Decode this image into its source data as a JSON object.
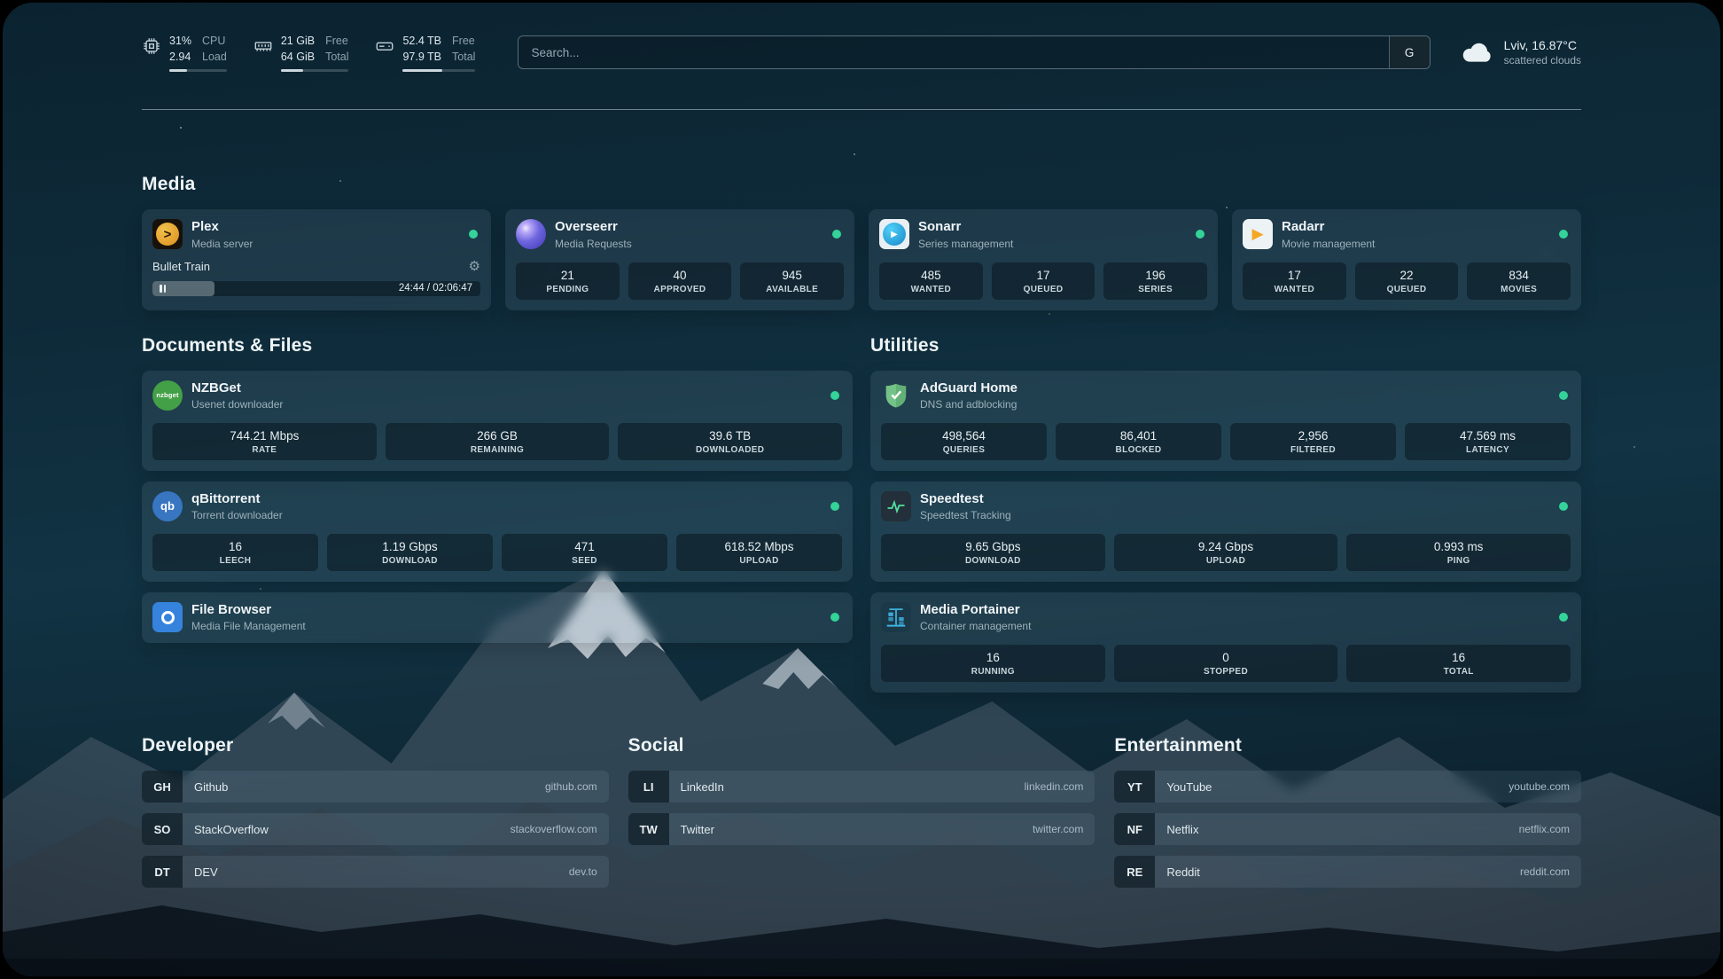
{
  "topbar": {
    "cpu": {
      "value": "31%",
      "load": "2.94",
      "label_top": "CPU",
      "label_bottom": "Load",
      "bar_percent": 31
    },
    "memory": {
      "value": "21 GiB",
      "total": "64 GiB",
      "label_top": "Free",
      "label_bottom": "Total",
      "bar_percent": 33
    },
    "disk": {
      "value": "52.4 TB",
      "total": "97.9 TB",
      "label_top": "Free",
      "label_bottom": "Total",
      "bar_percent": 54
    },
    "search": {
      "placeholder": "Search...",
      "provider_label": "G"
    },
    "weather": {
      "location": "Lviv, 16.87°C",
      "condition": "scattered clouds"
    }
  },
  "media": {
    "title": "Media",
    "plex": {
      "name": "Plex",
      "subtitle": "Media server",
      "now_playing": "Bullet Train",
      "time": "24:44 / 02:06:47",
      "progress_percent": 19
    },
    "overseerr": {
      "name": "Overseerr",
      "subtitle": "Media Requests",
      "stats": [
        {
          "value": "21",
          "label": "PENDING"
        },
        {
          "value": "40",
          "label": "APPROVED"
        },
        {
          "value": "945",
          "label": "AVAILABLE"
        }
      ]
    },
    "sonarr": {
      "name": "Sonarr",
      "subtitle": "Series management",
      "stats": [
        {
          "value": "485",
          "label": "WANTED"
        },
        {
          "value": "17",
          "label": "QUEUED"
        },
        {
          "value": "196",
          "label": "SERIES"
        }
      ]
    },
    "radarr": {
      "name": "Radarr",
      "subtitle": "Movie management",
      "stats": [
        {
          "value": "17",
          "label": "WANTED"
        },
        {
          "value": "22",
          "label": "QUEUED"
        },
        {
          "value": "834",
          "label": "MOVIES"
        }
      ]
    }
  },
  "documents": {
    "title": "Documents & Files",
    "nzbget": {
      "name": "NZBGet",
      "subtitle": "Usenet downloader",
      "icon_text": "nzbget",
      "stats": [
        {
          "value": "744.21 Mbps",
          "label": "RATE"
        },
        {
          "value": "266 GB",
          "label": "REMAINING"
        },
        {
          "value": "39.6 TB",
          "label": "DOWNLOADED"
        }
      ]
    },
    "qbittorrent": {
      "name": "qBittorrent",
      "subtitle": "Torrent downloader",
      "icon_text": "qb",
      "stats": [
        {
          "value": "16",
          "label": "LEECH"
        },
        {
          "value": "1.19 Gbps",
          "label": "DOWNLOAD"
        },
        {
          "value": "471",
          "label": "SEED"
        },
        {
          "value": "618.52 Mbps",
          "label": "UPLOAD"
        }
      ]
    },
    "filebrowser": {
      "name": "File Browser",
      "subtitle": "Media File Management"
    }
  },
  "utilities": {
    "title": "Utilities",
    "adguard": {
      "name": "AdGuard Home",
      "subtitle": "DNS and adblocking",
      "stats": [
        {
          "value": "498,564",
          "label": "QUERIES"
        },
        {
          "value": "86,401",
          "label": "BLOCKED"
        },
        {
          "value": "2,956",
          "label": "FILTERED"
        },
        {
          "value": "47.569 ms",
          "label": "LATENCY"
        }
      ]
    },
    "speedtest": {
      "name": "Speedtest",
      "subtitle": "Speedtest Tracking",
      "stats": [
        {
          "value": "9.65 Gbps",
          "label": "DOWNLOAD"
        },
        {
          "value": "9.24 Gbps",
          "label": "UPLOAD"
        },
        {
          "value": "0.993 ms",
          "label": "PING"
        }
      ]
    },
    "portainer": {
      "name": "Media Portainer",
      "subtitle": "Container management",
      "stats": [
        {
          "value": "16",
          "label": "RUNNING"
        },
        {
          "value": "0",
          "label": "STOPPED"
        },
        {
          "value": "16",
          "label": "TOTAL"
        }
      ]
    }
  },
  "bookmarks": {
    "developer": {
      "title": "Developer",
      "items": [
        {
          "abbr": "GH",
          "name": "Github",
          "domain": "github.com"
        },
        {
          "abbr": "SO",
          "name": "StackOverflow",
          "domain": "stackoverflow.com"
        },
        {
          "abbr": "DT",
          "name": "DEV",
          "domain": "dev.to"
        }
      ]
    },
    "social": {
      "title": "Social",
      "items": [
        {
          "abbr": "LI",
          "name": "LinkedIn",
          "domain": "linkedin.com"
        },
        {
          "abbr": "TW",
          "name": "Twitter",
          "domain": "twitter.com"
        }
      ]
    },
    "entertainment": {
      "title": "Entertainment",
      "items": [
        {
          "abbr": "YT",
          "name": "YouTube",
          "domain": "youtube.com"
        },
        {
          "abbr": "NF",
          "name": "Netflix",
          "domain": "netflix.com"
        },
        {
          "abbr": "RE",
          "name": "Reddit",
          "domain": "reddit.com"
        }
      ]
    }
  },
  "colors": {
    "status_green": "#34d399"
  }
}
